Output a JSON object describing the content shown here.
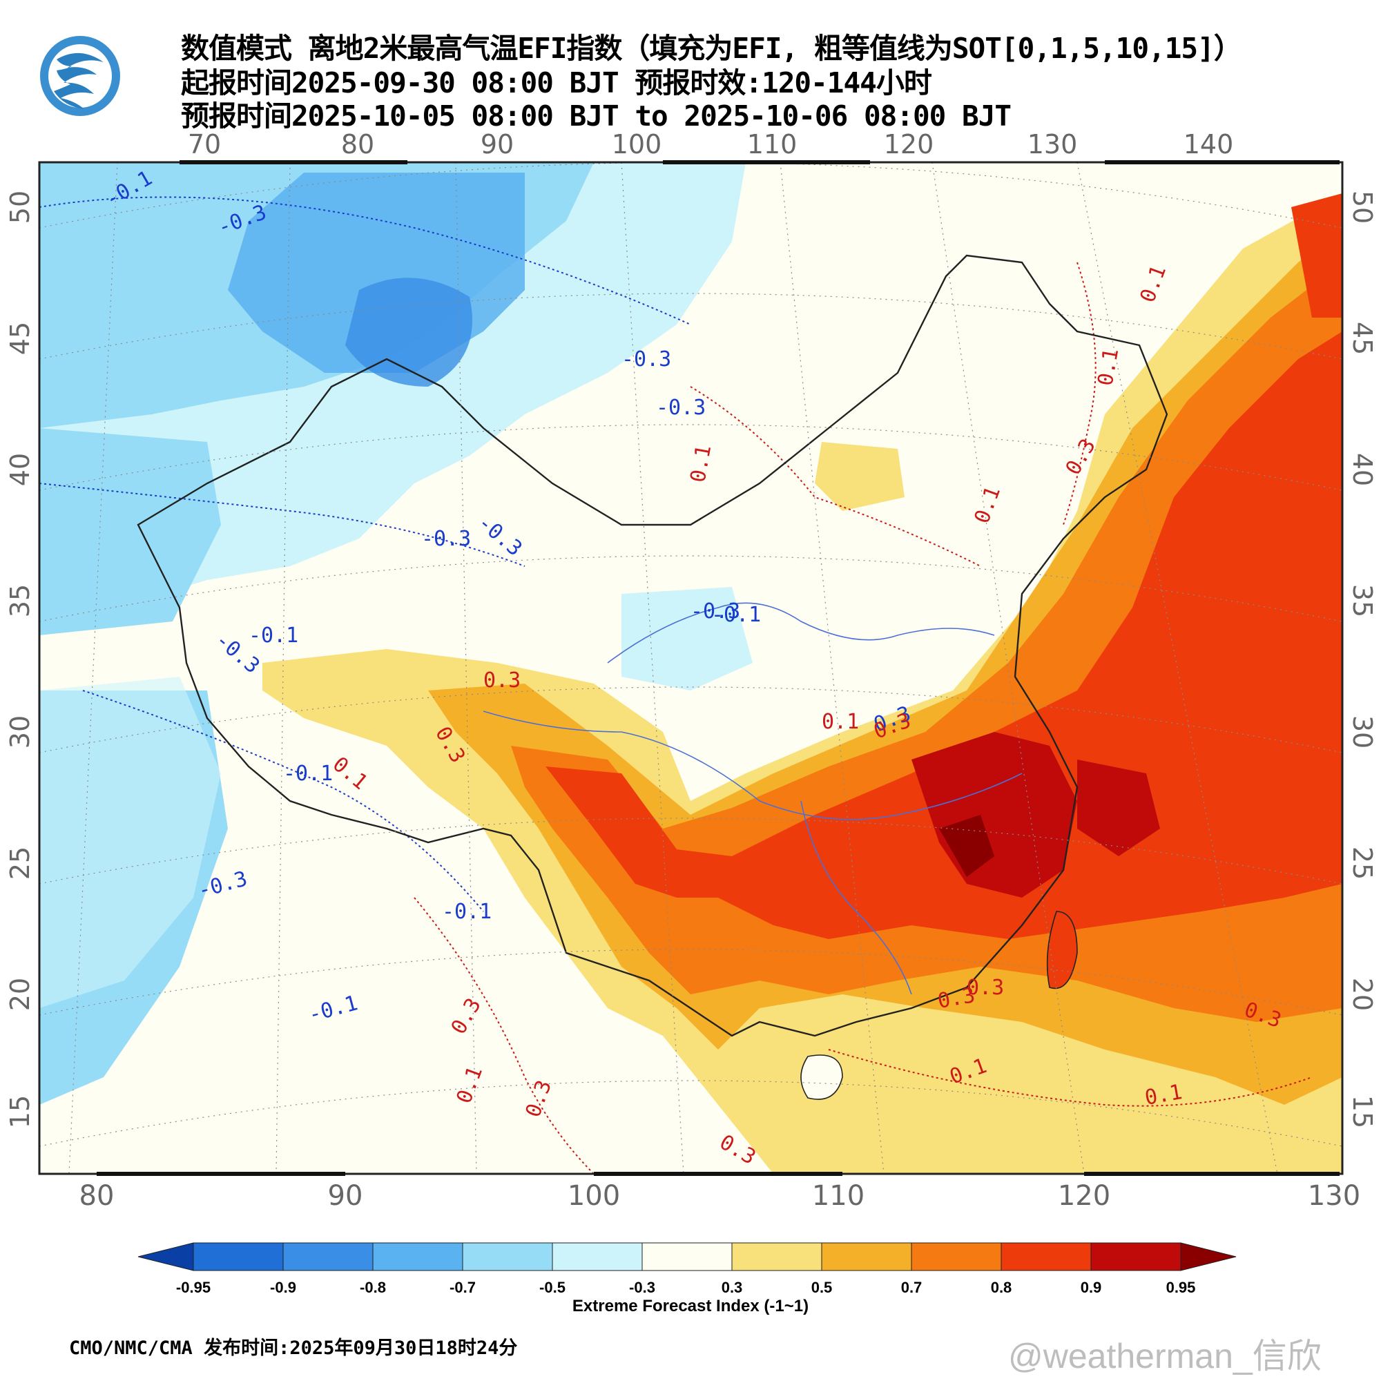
{
  "header": {
    "title_line1": "数值模式 离地2米最高气温EFI指数（填充为EFI, 粗等值线为SOT[0,1,5,10,15]）",
    "title_line2": "起报时间2025-09-30 08:00 BJT 预报时效:120-144小时",
    "title_line3": "预报时间2025-10-05 08:00 BJT to 2025-10-06 08:00 BJT"
  },
  "logo": {
    "icon": "cma-weather-logo",
    "color": "#2a7fc0"
  },
  "map": {
    "lon_top_labels": [
      "70",
      "80",
      "90",
      "100",
      "110",
      "120",
      "130",
      "140"
    ],
    "lon_bottom_labels": [
      "80",
      "90",
      "100",
      "110",
      "120",
      "130"
    ],
    "lat_left_labels": [
      "50",
      "45",
      "40",
      "35",
      "30",
      "25",
      "20",
      "15"
    ],
    "lat_right_labels": [
      "50",
      "45",
      "40",
      "35",
      "30",
      "25",
      "20",
      "15"
    ],
    "contour_labels": [
      {
        "text": "-0.1",
        "color": "blue"
      },
      {
        "text": "-0.3",
        "color": "blue"
      },
      {
        "text": "-0.3",
        "color": "blue"
      },
      {
        "text": "-0.1",
        "color": "blue"
      },
      {
        "text": "0.1",
        "color": "red"
      },
      {
        "text": "0.1",
        "color": "red"
      },
      {
        "text": "0.1",
        "color": "red"
      },
      {
        "text": "0.3",
        "color": "red"
      },
      {
        "text": "0.1",
        "color": "red"
      },
      {
        "text": "0.3",
        "color": "blue"
      },
      {
        "text": "-0.3",
        "color": "blue"
      },
      {
        "text": "-0.3",
        "color": "blue"
      },
      {
        "text": "-0.3",
        "color": "blue"
      },
      {
        "text": "-0.3",
        "color": "blue"
      },
      {
        "text": "-0.3",
        "color": "blue"
      },
      {
        "text": "-0.1",
        "color": "blue"
      },
      {
        "text": "0.3",
        "color": "red"
      },
      {
        "text": "0.3",
        "color": "red"
      },
      {
        "text": "0.1",
        "color": "red"
      },
      {
        "text": "-0.1",
        "color": "blue"
      },
      {
        "text": "0.1",
        "color": "red"
      },
      {
        "text": "0.3",
        "color": "red"
      },
      {
        "text": "-0.3",
        "color": "blue"
      },
      {
        "text": "-0.1",
        "color": "blue"
      },
      {
        "text": "-0.1",
        "color": "blue"
      },
      {
        "text": "0.3",
        "color": "red"
      },
      {
        "text": "0.3",
        "color": "red"
      },
      {
        "text": "0.1",
        "color": "red"
      },
      {
        "text": "0.3",
        "color": "red"
      },
      {
        "text": "0.1",
        "color": "red"
      },
      {
        "text": "0.1",
        "color": "red"
      },
      {
        "text": "0.3",
        "color": "red"
      },
      {
        "text": "0.3",
        "color": "red"
      },
      {
        "text": "0.3",
        "color": "red"
      }
    ]
  },
  "colorbar": {
    "levels": [
      "-0.95",
      "-0.9",
      "-0.8",
      "-0.7",
      "-0.5",
      "-0.3",
      "0.3",
      "0.5",
      "0.7",
      "0.8",
      "0.9",
      "0.95"
    ],
    "colors": [
      "#0a3fa6",
      "#1f6fd6",
      "#3a8ee6",
      "#5ab2f0",
      "#97dcf6",
      "#cdf3fb",
      "#fffef2",
      "#f8e07a",
      "#f5b02a",
      "#f57a12",
      "#ee3b0c",
      "#c00a0a",
      "#8a0000"
    ],
    "title": "Extreme Forecast Index (-1~1)"
  },
  "footer": {
    "source": "CMO/NMC/CMA 发布时间:2025年09月30日18时24分",
    "watermark": "@weatherman_信欣"
  }
}
